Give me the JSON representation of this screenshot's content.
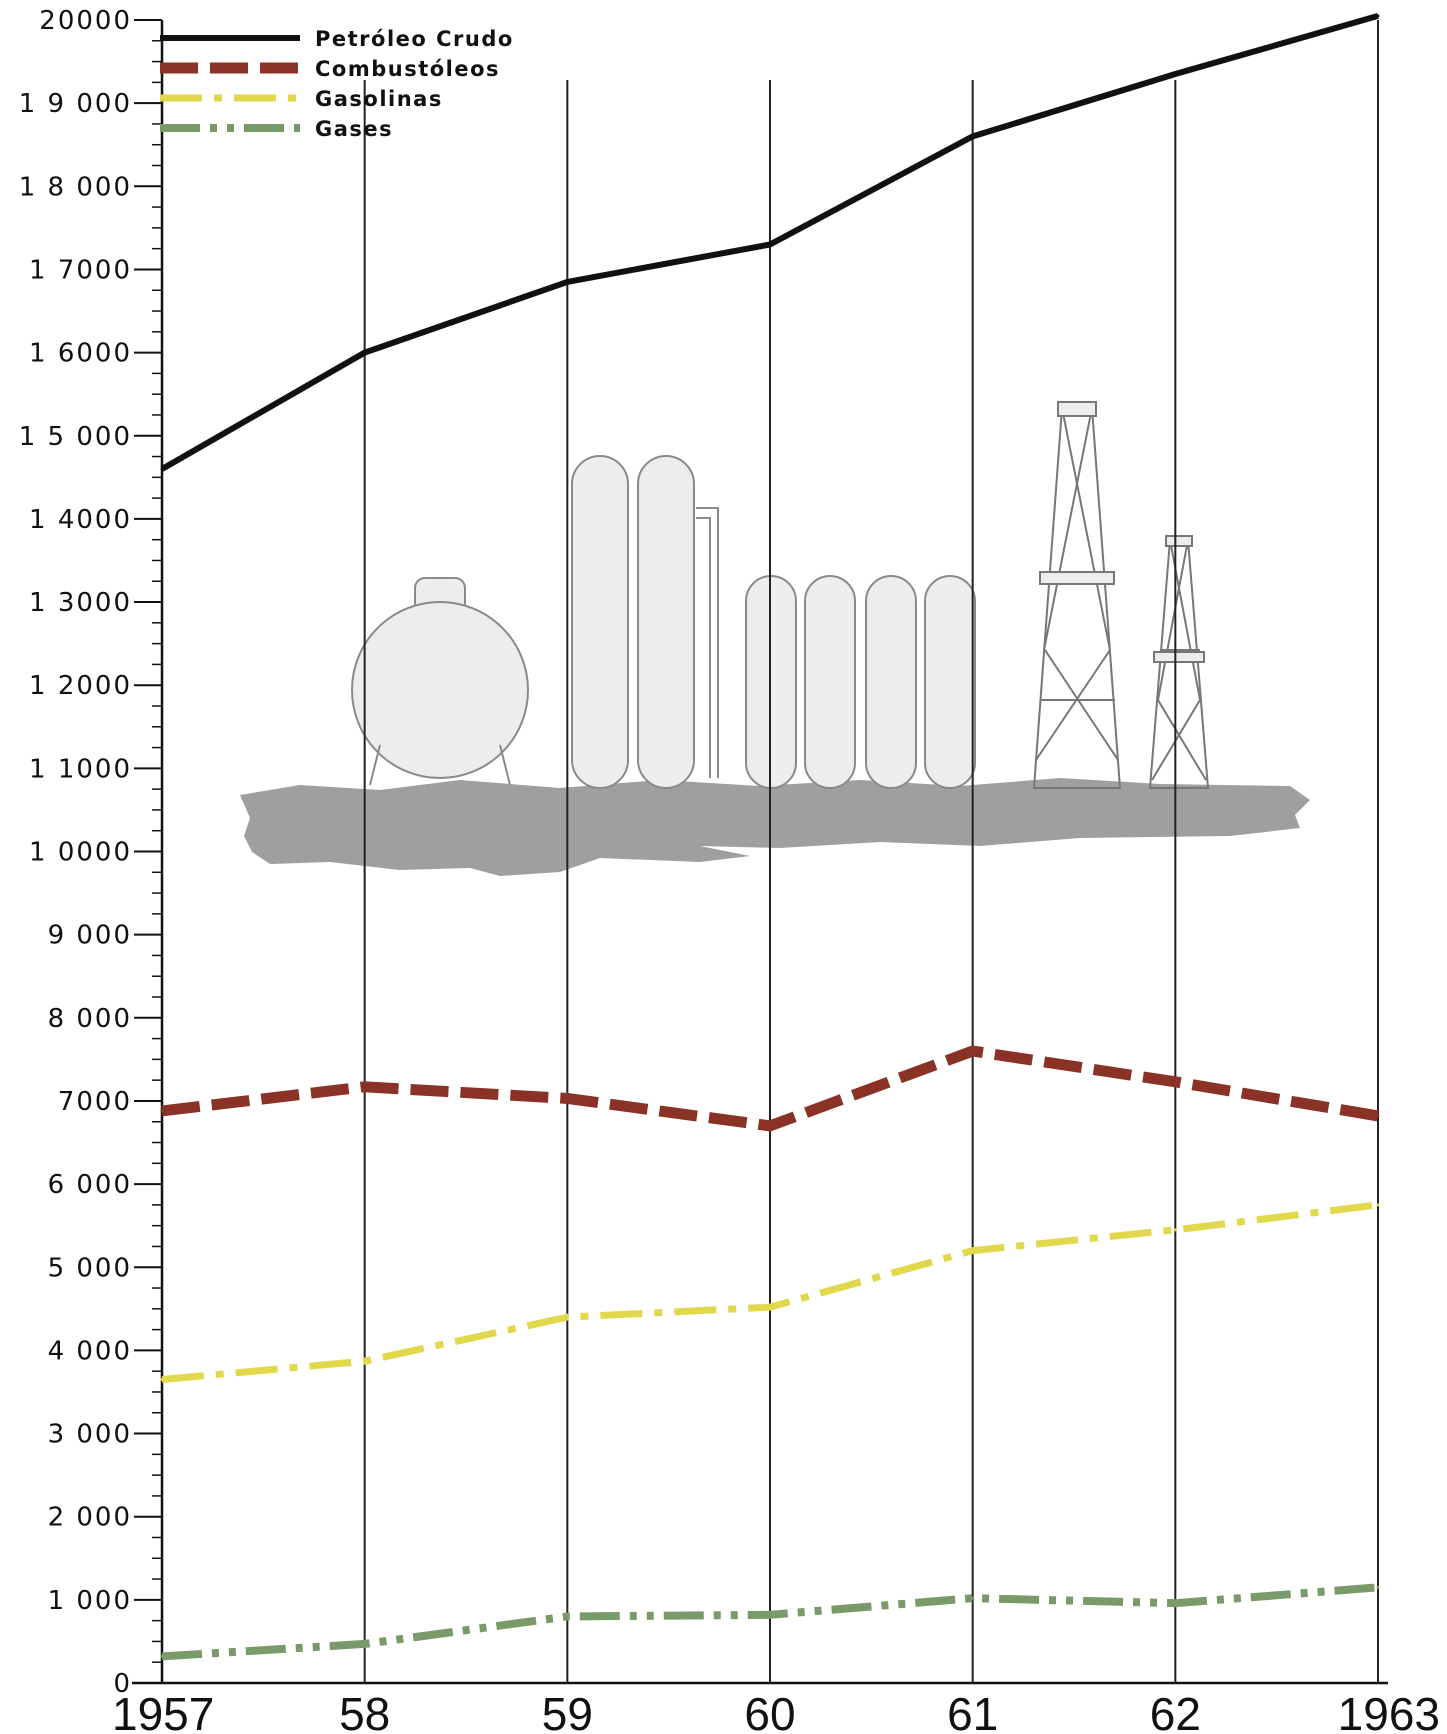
{
  "chart_data": {
    "type": "line",
    "title": "",
    "xlabel": "",
    "ylabel": "",
    "categories": [
      "1957",
      "58",
      "59",
      "60",
      "61",
      "62",
      "1963"
    ],
    "ylim": [
      0,
      20000
    ],
    "yticks": [
      0,
      1000,
      2000,
      3000,
      4000,
      5000,
      6000,
      7000,
      8000,
      9000,
      10000,
      11000,
      12000,
      13000,
      14000,
      15000,
      16000,
      17000,
      18000,
      19000,
      20000
    ],
    "ytick_labels": [
      "0",
      "1 000",
      "2 000",
      "3 000",
      "4 000",
      "5 000",
      "6 000",
      "7000",
      "8 000",
      "9 000",
      "1 0000",
      "1 1000",
      "1 2000",
      "1 3000",
      "1 4000",
      "1 5 000",
      "1 6000",
      "1 7000",
      "1 8 000",
      "1 9 000",
      "20000"
    ],
    "legend_position": "top-left",
    "grid": "vertical lines at each year",
    "series": [
      {
        "name": "Petróleo Crudo",
        "color": "#111111",
        "style": "solid",
        "values": [
          14600,
          16000,
          16850,
          17300,
          18600,
          19350,
          20050
        ]
      },
      {
        "name": "Combustóleos",
        "color": "#8b3226",
        "style": "dashed",
        "values": [
          6880,
          7170,
          7030,
          6700,
          7600,
          7230,
          6820
        ]
      },
      {
        "name": "Gasolinas",
        "color": "#e2d84c",
        "style": "dash-dot",
        "values": [
          3650,
          3870,
          4400,
          4520,
          5200,
          5450,
          5750
        ]
      },
      {
        "name": "Gases",
        "color": "#7b9a6a",
        "style": "dash-dot-dot",
        "values": [
          320,
          470,
          800,
          820,
          1020,
          960,
          1150
        ]
      }
    ]
  },
  "illustration": {
    "icons": [
      "spherical-tank-icon",
      "distillation-column-icon",
      "storage-tank-icon",
      "oil-derrick-icon"
    ]
  }
}
